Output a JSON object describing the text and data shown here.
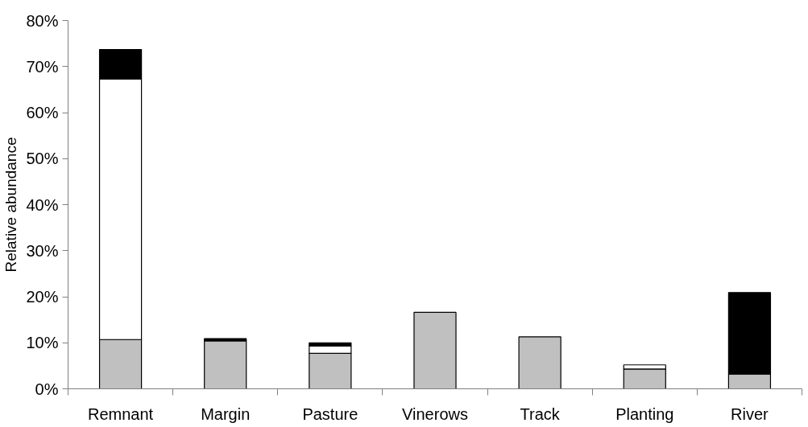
{
  "chart_data": {
    "type": "bar",
    "stacked": true,
    "ylabel": "Relative abundance",
    "categories": [
      "Remnant",
      "Margin",
      "Pasture",
      "Vinerows",
      "Track",
      "Planting",
      "River"
    ],
    "series": [
      {
        "color": "#c0c0c0",
        "values": [
          10.7,
          10.4,
          7.7,
          16.6,
          11.3,
          4.3,
          3.2
        ]
      },
      {
        "color": "#ffffff",
        "values": [
          56.6,
          null,
          1.6,
          null,
          null,
          0.9,
          null
        ]
      },
      {
        "color": "#000000",
        "values": [
          6.4,
          0.5,
          0.7,
          null,
          null,
          null,
          17.7
        ]
      }
    ],
    "ylim": [
      0,
      80
    ],
    "yticks": [
      {
        "value": 0,
        "label": "0%"
      },
      {
        "value": 10,
        "label": "10%"
      },
      {
        "value": 20,
        "label": "20%"
      },
      {
        "value": 30,
        "label": "30%"
      },
      {
        "value": 40,
        "label": "40%"
      },
      {
        "value": 50,
        "label": "50%"
      },
      {
        "value": 60,
        "label": "60%"
      },
      {
        "value": 70,
        "label": "70%"
      },
      {
        "value": 80,
        "label": "80%"
      }
    ],
    "grid": false
  }
}
